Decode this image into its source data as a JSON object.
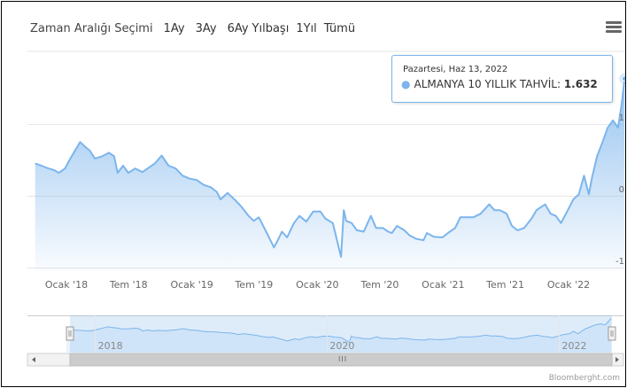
{
  "range_selector": {
    "label": "Zaman Aralığı Seçimi",
    "buttons": [
      "1Ay",
      "3Ay",
      "6Ay",
      "Yılbaşı",
      "1Yıl",
      "Tümü"
    ]
  },
  "tooltip": {
    "date": "Pazartesi, Haz 13, 2022",
    "series_name": "ALMANYA 10 YILLIK TAHVİL:",
    "value": "1.632"
  },
  "credits": "Bloomberght.com",
  "navigator": {
    "labels": [
      "2018",
      "2020",
      "2022"
    ]
  },
  "colors": {
    "line": "#7cb5ec",
    "tooltip_border": "#7cb5ec"
  },
  "chart_data": {
    "type": "area",
    "title": "",
    "x_ticks": [
      "Ocak '18",
      "Tem '18",
      "Ocak '19",
      "Tem '19",
      "Ocak '20",
      "Tem '20",
      "Ocak '21",
      "Tem '21",
      "Ocak '22"
    ],
    "y_ticks": [
      "1",
      "0",
      "-1"
    ],
    "ylim": [
      -1,
      1.75
    ],
    "grid": true,
    "series": [
      {
        "name": "ALMANYA 10 YILLIK TAHVİL",
        "points": [
          [
            "2017-10-02",
            0.45
          ],
          [
            "2017-10-20",
            0.42
          ],
          [
            "2017-11-10",
            0.38
          ],
          [
            "2017-11-25",
            0.36
          ],
          [
            "2017-12-10",
            0.32
          ],
          [
            "2017-12-28",
            0.38
          ],
          [
            "2018-01-10",
            0.5
          ],
          [
            "2018-01-25",
            0.62
          ],
          [
            "2018-02-10",
            0.75
          ],
          [
            "2018-02-25",
            0.68
          ],
          [
            "2018-03-10",
            0.63
          ],
          [
            "2018-03-25",
            0.52
          ],
          [
            "2018-04-15",
            0.55
          ],
          [
            "2018-05-05",
            0.6
          ],
          [
            "2018-05-20",
            0.55
          ],
          [
            "2018-05-30",
            0.32
          ],
          [
            "2018-06-15",
            0.42
          ],
          [
            "2018-06-30",
            0.32
          ],
          [
            "2018-07-20",
            0.38
          ],
          [
            "2018-08-10",
            0.33
          ],
          [
            "2018-08-25",
            0.38
          ],
          [
            "2018-09-15",
            0.45
          ],
          [
            "2018-10-05",
            0.56
          ],
          [
            "2018-10-25",
            0.42
          ],
          [
            "2018-11-15",
            0.38
          ],
          [
            "2018-12-05",
            0.28
          ],
          [
            "2018-12-25",
            0.24
          ],
          [
            "2019-01-15",
            0.22
          ],
          [
            "2019-02-05",
            0.15
          ],
          [
            "2019-02-25",
            0.12
          ],
          [
            "2019-03-15",
            0.05
          ],
          [
            "2019-03-25",
            -0.05
          ],
          [
            "2019-04-15",
            0.04
          ],
          [
            "2019-05-05",
            -0.05
          ],
          [
            "2019-05-25",
            -0.15
          ],
          [
            "2019-06-15",
            -0.28
          ],
          [
            "2019-06-30",
            -0.35
          ],
          [
            "2019-07-15",
            -0.3
          ],
          [
            "2019-08-05",
            -0.5
          ],
          [
            "2019-08-28",
            -0.72
          ],
          [
            "2019-09-10",
            -0.6
          ],
          [
            "2019-09-20",
            -0.5
          ],
          [
            "2019-10-05",
            -0.58
          ],
          [
            "2019-10-25",
            -0.38
          ],
          [
            "2019-11-10",
            -0.28
          ],
          [
            "2019-11-30",
            -0.36
          ],
          [
            "2019-12-20",
            -0.22
          ],
          [
            "2020-01-10",
            -0.22
          ],
          [
            "2020-01-25",
            -0.32
          ],
          [
            "2020-02-15",
            -0.38
          ],
          [
            "2020-03-05",
            -0.75
          ],
          [
            "2020-03-10",
            -0.85
          ],
          [
            "2020-03-18",
            -0.2
          ],
          [
            "2020-03-25",
            -0.35
          ],
          [
            "2020-04-10",
            -0.38
          ],
          [
            "2020-04-25",
            -0.48
          ],
          [
            "2020-05-15",
            -0.5
          ],
          [
            "2020-06-05",
            -0.28
          ],
          [
            "2020-06-20",
            -0.45
          ],
          [
            "2020-07-10",
            -0.45
          ],
          [
            "2020-07-25",
            -0.5
          ],
          [
            "2020-08-05",
            -0.52
          ],
          [
            "2020-08-20",
            -0.42
          ],
          [
            "2020-09-10",
            -0.48
          ],
          [
            "2020-09-25",
            -0.55
          ],
          [
            "2020-10-15",
            -0.6
          ],
          [
            "2020-11-05",
            -0.62
          ],
          [
            "2020-11-15",
            -0.52
          ],
          [
            "2020-12-05",
            -0.57
          ],
          [
            "2020-12-30",
            -0.58
          ],
          [
            "2021-01-15",
            -0.52
          ],
          [
            "2021-02-05",
            -0.45
          ],
          [
            "2021-02-20",
            -0.3
          ],
          [
            "2021-03-10",
            -0.3
          ],
          [
            "2021-03-30",
            -0.3
          ],
          [
            "2021-04-20",
            -0.25
          ],
          [
            "2021-05-15",
            -0.12
          ],
          [
            "2021-05-30",
            -0.2
          ],
          [
            "2021-06-15",
            -0.2
          ],
          [
            "2021-07-05",
            -0.25
          ],
          [
            "2021-07-20",
            -0.42
          ],
          [
            "2021-08-05",
            -0.48
          ],
          [
            "2021-08-25",
            -0.45
          ],
          [
            "2021-09-15",
            -0.32
          ],
          [
            "2021-09-30",
            -0.2
          ],
          [
            "2021-10-15",
            -0.15
          ],
          [
            "2021-10-25",
            -0.12
          ],
          [
            "2021-11-10",
            -0.25
          ],
          [
            "2021-11-25",
            -0.28
          ],
          [
            "2021-12-10",
            -0.38
          ],
          [
            "2021-12-30",
            -0.2
          ],
          [
            "2022-01-15",
            -0.05
          ],
          [
            "2022-01-31",
            0.02
          ],
          [
            "2022-02-15",
            0.28
          ],
          [
            "2022-03-01",
            0.02
          ],
          [
            "2022-03-10",
            0.25
          ],
          [
            "2022-03-25",
            0.55
          ],
          [
            "2022-04-10",
            0.75
          ],
          [
            "2022-04-25",
            0.95
          ],
          [
            "2022-05-10",
            1.05
          ],
          [
            "2022-05-25",
            0.95
          ],
          [
            "2022-06-05",
            1.3
          ],
          [
            "2022-06-13",
            1.632
          ]
        ]
      }
    ]
  }
}
